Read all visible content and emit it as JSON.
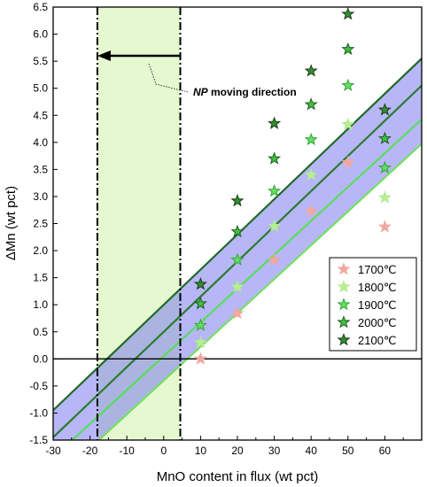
{
  "chart_data": {
    "type": "scatter",
    "xlabel": "MnO content in flux (wt pct)",
    "ylabel": "ΔMn (wt pct)",
    "xlim": [
      -30,
      70
    ],
    "ylim": [
      -1.5,
      6.5
    ],
    "x_ticks": [
      -30,
      -20,
      -10,
      0,
      10,
      20,
      30,
      40,
      50,
      60
    ],
    "y_ticks": [
      -1.5,
      -1.0,
      -0.5,
      0.0,
      0.5,
      1.0,
      1.5,
      2.0,
      2.5,
      3.0,
      3.5,
      4.0,
      4.5,
      5.0,
      5.5,
      6.0,
      6.5
    ],
    "grid": false,
    "legend_position": "bottom-right",
    "annotation": {
      "prefix": "NP",
      "text": " moving direction"
    },
    "series": [
      {
        "name": "1700℃",
        "color": "#f0a8a0",
        "points": [
          [
            10,
            0.0
          ],
          [
            20,
            0.84
          ],
          [
            30,
            1.83
          ],
          [
            40,
            2.73
          ],
          [
            50,
            3.63
          ],
          [
            60,
            2.44
          ]
        ],
        "fit": {
          "intercept": -0.4,
          "slope": 0.0625
        }
      },
      {
        "name": "1800℃",
        "color": "#b8f090",
        "points": [
          [
            10,
            0.3
          ],
          [
            20,
            1.33
          ],
          [
            30,
            2.45
          ],
          [
            40,
            3.4
          ],
          [
            50,
            4.33
          ],
          [
            60,
            2.98
          ]
        ],
        "fit": {
          "intercept": -0.4,
          "slope": 0.0625
        }
      },
      {
        "name": "1900℃",
        "color": "#60e060",
        "points": [
          [
            10,
            0.62
          ],
          [
            20,
            1.83
          ],
          [
            30,
            3.1
          ],
          [
            40,
            4.05
          ],
          [
            50,
            5.05
          ],
          [
            60,
            3.53
          ]
        ],
        "fit": {
          "intercept": 0.05,
          "slope": 0.0625
        }
      },
      {
        "name": "2000℃",
        "color": "#40c040",
        "points": [
          [
            10,
            1.02
          ],
          [
            20,
            2.35
          ],
          [
            30,
            3.7
          ],
          [
            40,
            4.7
          ],
          [
            50,
            5.72
          ],
          [
            60,
            4.07
          ]
        ],
        "fit": {
          "intercept": 0.5,
          "slope": 0.065
        }
      },
      {
        "name": "2100℃",
        "color": "#309030",
        "points": [
          [
            10,
            1.38
          ],
          [
            20,
            2.92
          ],
          [
            30,
            4.35
          ],
          [
            40,
            5.32
          ],
          [
            50,
            6.37
          ],
          [
            60,
            4.6
          ]
        ],
        "fit": {
          "intercept": 1.0,
          "slope": 0.065
        }
      }
    ],
    "shaded_band": {
      "from_series": "1700℃",
      "to_series": "2100℃",
      "color": "#7070f0"
    },
    "green_region": {
      "x_from": -18,
      "x_to": 4.5,
      "color": "#e6f8d0"
    },
    "arrow": {
      "y": 5.6,
      "x_from": 4.5,
      "x_to": -18
    }
  }
}
